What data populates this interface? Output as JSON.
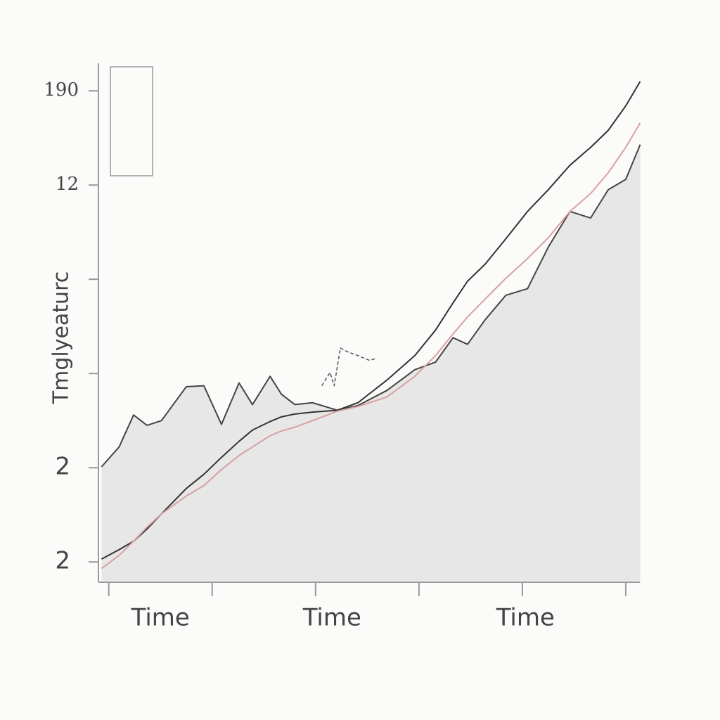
{
  "chart_data": {
    "type": "line",
    "y_label": "Tmglyeaturc",
    "xlim": [
      -0.1,
      5.15
    ],
    "ylim": [
      -0.2,
      5.3
    ],
    "xticks": [
      0,
      1,
      2,
      3,
      4,
      5
    ],
    "x_labels": [
      {
        "value": 0.5,
        "label": "Time"
      },
      {
        "value": 2.16,
        "label": "Time"
      },
      {
        "value": 4.03,
        "label": "Time"
      }
    ],
    "yticks": [
      {
        "value": 5,
        "label": "190"
      },
      {
        "value": 4,
        "label": "12"
      },
      {
        "value": 3,
        "label": null
      },
      {
        "value": 2,
        "label": null
      },
      {
        "value": 1,
        "label": "2"
      },
      {
        "value": 0,
        "label": "2"
      }
    ],
    "series": [
      {
        "color": "#444444",
        "fill": "#e7e7e7",
        "dashed": false,
        "x": [
          -0.07,
          0.1,
          0.24,
          0.37,
          0.51,
          0.75,
          0.92,
          1.09,
          1.26,
          1.39,
          1.56,
          1.67,
          1.8,
          1.97,
          2.21,
          2.41,
          2.69,
          2.96,
          3.16,
          3.33,
          3.47,
          3.64,
          3.84,
          4.05,
          4.25,
          4.46,
          4.66,
          4.83,
          5.0,
          5.14
        ],
        "values": [
          1.01,
          1.22,
          1.56,
          1.45,
          1.5,
          1.86,
          1.87,
          1.46,
          1.9,
          1.67,
          1.97,
          1.78,
          1.67,
          1.69,
          1.61,
          1.66,
          1.82,
          2.04,
          2.12,
          2.38,
          2.31,
          2.57,
          2.83,
          2.9,
          3.34,
          3.72,
          3.65,
          3.95,
          4.06,
          4.43
        ]
      },
      {
        "color": "#333333",
        "fill": null,
        "dashed": false,
        "x": [
          -0.07,
          0.1,
          0.24,
          0.37,
          0.51,
          0.75,
          0.92,
          1.09,
          1.26,
          1.39,
          1.56,
          1.67,
          1.8,
          1.97,
          2.21,
          2.41,
          2.69,
          2.96,
          3.16,
          3.33,
          3.47,
          3.64,
          3.84,
          4.05,
          4.25,
          4.46,
          4.66,
          4.83,
          5.0,
          5.14
        ],
        "values": [
          0.03,
          0.13,
          0.22,
          0.35,
          0.51,
          0.78,
          0.93,
          1.11,
          1.28,
          1.4,
          1.49,
          1.54,
          1.57,
          1.59,
          1.61,
          1.69,
          1.93,
          2.19,
          2.46,
          2.75,
          2.98,
          3.16,
          3.43,
          3.72,
          3.95,
          4.21,
          4.4,
          4.58,
          4.84,
          5.1
        ]
      },
      {
        "color": "#d8a0a0",
        "fill": null,
        "dashed": false,
        "x": [
          -0.07,
          0.1,
          0.24,
          0.37,
          0.51,
          0.75,
          0.92,
          1.09,
          1.26,
          1.39,
          1.56,
          1.67,
          1.8,
          1.97,
          2.21,
          2.41,
          2.69,
          2.96,
          3.16,
          3.33,
          3.47,
          3.64,
          3.84,
          4.05,
          4.25,
          4.46,
          4.66,
          4.83,
          5.0,
          5.14
        ],
        "values": [
          -0.07,
          0.07,
          0.22,
          0.37,
          0.51,
          0.7,
          0.81,
          0.98,
          1.13,
          1.22,
          1.34,
          1.39,
          1.43,
          1.5,
          1.6,
          1.65,
          1.75,
          1.97,
          2.19,
          2.42,
          2.6,
          2.79,
          3.01,
          3.22,
          3.44,
          3.72,
          3.91,
          4.13,
          4.4,
          4.66
        ]
      },
      {
        "color": "#555555",
        "fill": null,
        "dashed": true,
        "x": [
          2.06,
          2.14,
          2.18,
          2.24,
          2.31,
          2.41,
          2.52,
          2.59
        ],
        "values": [
          1.87,
          2.01,
          1.87,
          2.27,
          2.23,
          2.19,
          2.14,
          2.16
        ]
      }
    ]
  }
}
